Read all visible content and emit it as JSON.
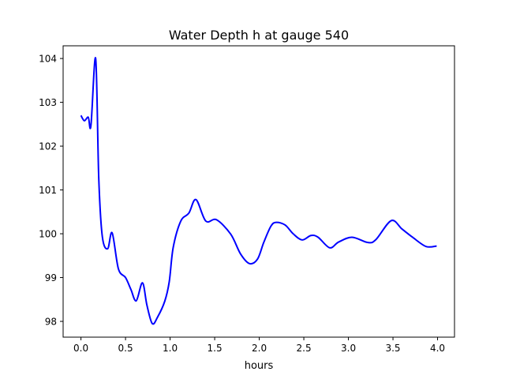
{
  "chart_data": {
    "type": "line",
    "title": "Water Depth h at gauge 540",
    "xlabel": "hours",
    "ylabel": "",
    "xlim": [
      -0.2,
      4.19
    ],
    "ylim": [
      97.64,
      104.29
    ],
    "xticks": [
      0.0,
      0.5,
      1.0,
      1.5,
      2.0,
      2.5,
      3.0,
      3.5,
      4.0
    ],
    "xtick_labels": [
      "0.0",
      "0.5",
      "1.0",
      "1.5",
      "2.0",
      "2.5",
      "3.0",
      "3.5",
      "4.0"
    ],
    "yticks": [
      98,
      99,
      100,
      101,
      102,
      103,
      104
    ],
    "ytick_labels": [
      "98",
      "99",
      "100",
      "101",
      "102",
      "103",
      "104"
    ],
    "grid": false,
    "series": [
      {
        "name": "h",
        "color": "#0000ff",
        "x": [
          0.0,
          0.038,
          0.082,
          0.112,
          0.165,
          0.2,
          0.24,
          0.3,
          0.35,
          0.42,
          0.5,
          0.56,
          0.62,
          0.69,
          0.74,
          0.8,
          0.86,
          0.94,
          0.99,
          1.035,
          1.12,
          1.21,
          1.29,
          1.4,
          1.52,
          1.68,
          1.79,
          1.89,
          1.98,
          2.05,
          2.13,
          2.19,
          2.29,
          2.38,
          2.48,
          2.58,
          2.66,
          2.79,
          2.89,
          3.04,
          3.22,
          3.31,
          3.48,
          3.6,
          3.72,
          3.87,
          3.99
        ],
        "y": [
          102.7,
          102.58,
          102.66,
          102.47,
          104.0,
          101.25,
          99.93,
          99.66,
          100.02,
          99.2,
          99.0,
          98.73,
          98.47,
          98.88,
          98.37,
          97.95,
          98.1,
          98.46,
          98.9,
          99.69,
          100.29,
          100.47,
          100.78,
          100.29,
          100.32,
          99.99,
          99.54,
          99.32,
          99.42,
          99.8,
          100.17,
          100.26,
          100.2,
          100.0,
          99.86,
          99.96,
          99.92,
          99.68,
          99.81,
          99.92,
          99.8,
          99.87,
          100.3,
          100.11,
          99.92,
          99.71,
          99.72
        ]
      }
    ]
  }
}
